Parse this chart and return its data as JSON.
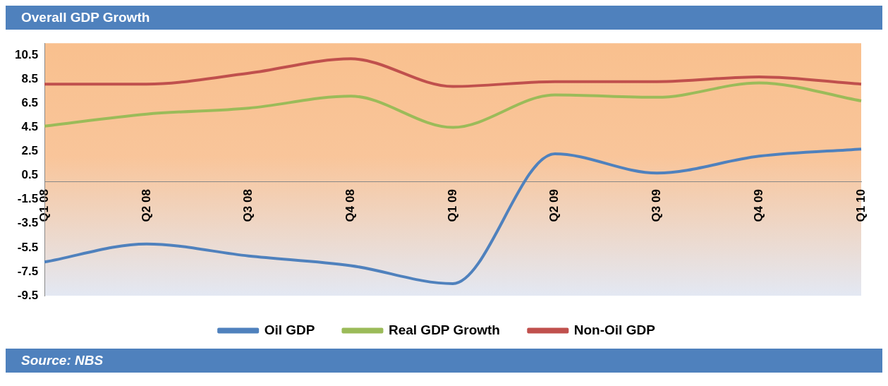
{
  "chart_data": {
    "type": "line",
    "title": "Overall GDP Growth",
    "categories": [
      "Q1 08",
      "Q2 08",
      "Q3 08",
      "Q4 08",
      "Q1 09",
      "Q2 09",
      "Q3 09",
      "Q4 09",
      "Q1 10"
    ],
    "series": [
      {
        "name": "Oil GDP",
        "color": "#4f81bd",
        "values": [
          -6.7,
          -5.2,
          -6.2,
          -7.0,
          -8.5,
          2.3,
          0.7,
          2.1,
          2.7
        ]
      },
      {
        "name": "Real GDP Growth",
        "color": "#9bbb59",
        "values": [
          4.6,
          5.6,
          6.1,
          7.1,
          4.5,
          7.2,
          7.0,
          8.2,
          6.7
        ]
      },
      {
        "name": "Non-Oil GDP",
        "color": "#c0504d",
        "values": [
          8.1,
          8.1,
          9.0,
          10.2,
          7.9,
          8.3,
          8.3,
          8.7,
          8.1
        ]
      }
    ],
    "ylim": [
      -9.5,
      11.5
    ],
    "yticks": [
      -9.5,
      -7.5,
      -5.5,
      -3.5,
      -1.5,
      0.5,
      2.5,
      4.5,
      6.5,
      8.5,
      10.5
    ],
    "grid": false,
    "legend": "bottom",
    "marker": "none",
    "line_style": "solid",
    "annotations": [
      "Source: NBS"
    ]
  }
}
